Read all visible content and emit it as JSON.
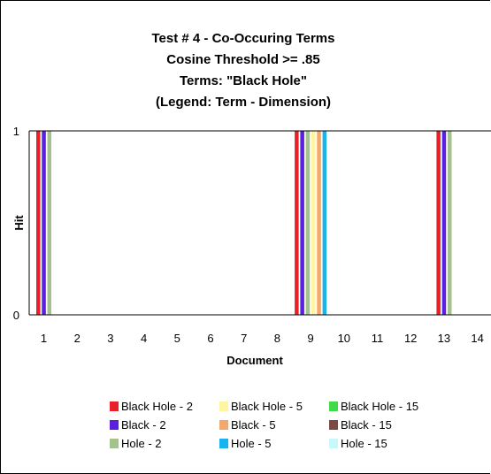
{
  "chart_data": {
    "type": "bar",
    "title_lines": [
      "Test # 4 - Co-Occuring Terms",
      "Cosine Threshold >= .85",
      "Terms: \"Black Hole\"",
      "(Legend: Term - Dimension)"
    ],
    "xlabel": "Document",
    "ylabel": "Hit",
    "ylim": [
      0,
      1
    ],
    "y_ticks": [
      "0",
      "1"
    ],
    "categories": [
      "1",
      "2",
      "3",
      "4",
      "5",
      "6",
      "7",
      "8",
      "9",
      "10",
      "11",
      "12",
      "13",
      "14"
    ],
    "series": [
      {
        "name": "Black Hole - 2",
        "color": "#e8202a",
        "values": [
          1,
          0,
          0,
          0,
          0,
          0,
          0,
          0,
          1,
          0,
          0,
          0,
          1,
          0
        ]
      },
      {
        "name": "Black - 2",
        "color": "#5b1fe0",
        "values": [
          1,
          0,
          0,
          0,
          0,
          0,
          0,
          0,
          1,
          0,
          0,
          0,
          1,
          0
        ]
      },
      {
        "name": "Hole - 2",
        "color": "#a3c28e",
        "values": [
          1,
          0,
          0,
          0,
          0,
          0,
          0,
          0,
          1,
          0,
          0,
          0,
          1,
          0
        ]
      },
      {
        "name": "Black Hole - 5",
        "color": "#fff4a0",
        "values": [
          0,
          0,
          0,
          0,
          0,
          0,
          0,
          0,
          1,
          0,
          0,
          0,
          0,
          0
        ]
      },
      {
        "name": "Black - 5",
        "color": "#f4a96a",
        "values": [
          0,
          0,
          0,
          0,
          0,
          0,
          0,
          0,
          1,
          0,
          0,
          0,
          0,
          0
        ]
      },
      {
        "name": "Hole - 5",
        "color": "#19b4f0",
        "values": [
          0,
          0,
          0,
          0,
          0,
          0,
          0,
          0,
          1,
          0,
          0,
          0,
          0,
          0
        ]
      },
      {
        "name": "Black Hole - 15",
        "color": "#42d94a",
        "values": [
          0,
          0,
          0,
          0,
          0,
          0,
          0,
          0,
          0,
          0,
          0,
          0,
          0,
          0
        ]
      },
      {
        "name": "Black - 15",
        "color": "#7b4a44",
        "values": [
          0,
          0,
          0,
          0,
          0,
          0,
          0,
          0,
          0,
          0,
          0,
          0,
          0,
          0
        ]
      },
      {
        "name": "Hole - 15",
        "color": "#c9f8fb",
        "values": [
          0,
          0,
          0,
          0,
          0,
          0,
          0,
          0,
          0,
          0,
          0,
          0,
          0,
          0
        ]
      }
    ],
    "legend_order": [
      "Black Hole - 2",
      "Black Hole - 5",
      "Black Hole - 15",
      "Black - 2",
      "Black - 5",
      "Black - 15",
      "Hole - 2",
      "Hole - 5",
      "Hole - 15"
    ],
    "legend_position": "bottom",
    "grid": false
  }
}
